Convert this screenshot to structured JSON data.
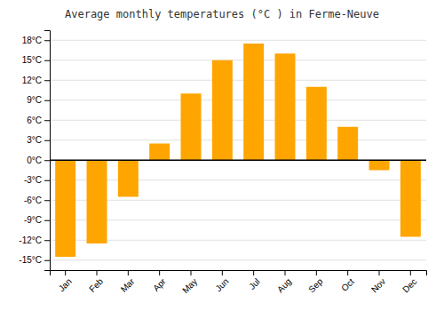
{
  "chart_data": {
    "type": "bar",
    "title": "Average monthly temperatures (°C ) in Ferme-Neuve",
    "categories": [
      "Jan",
      "Feb",
      "Mar",
      "Apr",
      "May",
      "Jun",
      "Jul",
      "Aug",
      "Sep",
      "Oct",
      "Nov",
      "Dec"
    ],
    "values": [
      -14.5,
      -12.5,
      -5.5,
      2.5,
      10.0,
      15.0,
      17.5,
      16.0,
      11.0,
      5.0,
      -1.5,
      -11.5
    ],
    "color": "#FFA500",
    "ylim": [
      -16.5,
      19.5
    ],
    "yticks": [
      {
        "value": 18,
        "label": "18°C"
      },
      {
        "value": 15,
        "label": "15°C"
      },
      {
        "value": 12,
        "label": "12°C"
      },
      {
        "value": 9,
        "label": "9°C"
      },
      {
        "value": 6,
        "label": "6°C"
      },
      {
        "value": 3,
        "label": "3°C"
      },
      {
        "value": 0,
        "label": "0°C"
      },
      {
        "value": -3,
        "label": "-3°C"
      },
      {
        "value": -6,
        "label": "-6°C"
      },
      {
        "value": -9,
        "label": "-9°C"
      },
      {
        "value": -12,
        "label": "-12°C"
      },
      {
        "value": -15,
        "label": "-15°C"
      }
    ],
    "grid": true
  }
}
